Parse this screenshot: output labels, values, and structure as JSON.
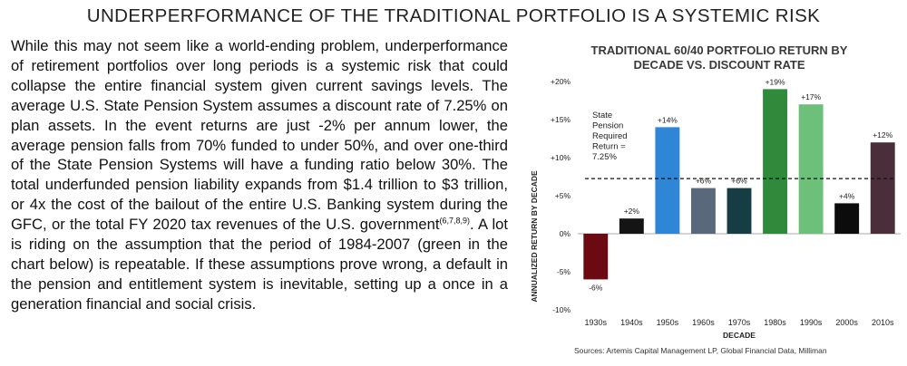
{
  "page": {
    "title": "UNDERPERFORMANCE OF THE TRADITIONAL PORTFOLIO IS A SYSTEMIC RISK",
    "body_main": "While this may not seem like a world-ending problem, underperformance of retirement portfolios over long periods is a systemic risk that could collapse the entire financial system given current savings levels.  The average U.S. State Pension System assumes a discount rate of 7.25% on plan assets. In the event returns are just -2% per annum lower, the average pension falls from 70% funded to under 50%, and over one-third of the State Pension Systems will have a funding ratio below 30%. The total underfunded pension liability expands from  $1.4 trillion to $3 trillion, or 4x the cost of the bailout of the entire U.S. Banking system during the GFC, or the total FY 2020 tax revenues of the U.S. government",
    "body_citation": "(6,7,8,9)",
    "body_tail": ". A lot is riding on the assumption that the period of 1984-2007 (green in the chart below) is repeatable. If these assumptions prove wrong, a default in the pension and entitlement system is inevitable, setting up a once in a generation financial and social crisis."
  },
  "chart_data": {
    "type": "bar",
    "title_line1": "TRADITIONAL 60/40 PORTFOLIO RETURN BY",
    "title_line2": "DECADE VS. DISCOUNT RATE",
    "xlabel": "DECADE",
    "ylabel": "ANNUALIZED RETURN BY DECADE",
    "categories": [
      "1930s",
      "1940s",
      "1950s",
      "1960s",
      "1970s",
      "1980s",
      "1990s",
      "2000s",
      "2010s"
    ],
    "values": [
      -6,
      2,
      14,
      6,
      6,
      19,
      17,
      4,
      12
    ],
    "data_labels": [
      "-6%",
      "+2%",
      "+14%",
      "+6%",
      "+6%",
      "+19%",
      "+17%",
      "+4%",
      "+12%"
    ],
    "bar_colors": [
      "#6b0a10",
      "#141414",
      "#2f86d6",
      "#59687a",
      "#163d44",
      "#2f8a3c",
      "#6cc07a",
      "#0c0c0c",
      "#4a2f3a"
    ],
    "ylim": [
      -10,
      20
    ],
    "yticks": [
      -10,
      -5,
      0,
      5,
      10,
      15,
      20
    ],
    "ytick_labels": [
      "-10%",
      "-5%",
      "0%",
      "+5%",
      "+10%",
      "+15%",
      "+20%"
    ],
    "reference_line": {
      "value": 7.25,
      "label_lines": [
        "State",
        "Pension",
        "Required",
        "Return =",
        "7.25%"
      ]
    },
    "source": "Sources: Artemis Capital Management LP, Global Financial Data, Milliman"
  }
}
